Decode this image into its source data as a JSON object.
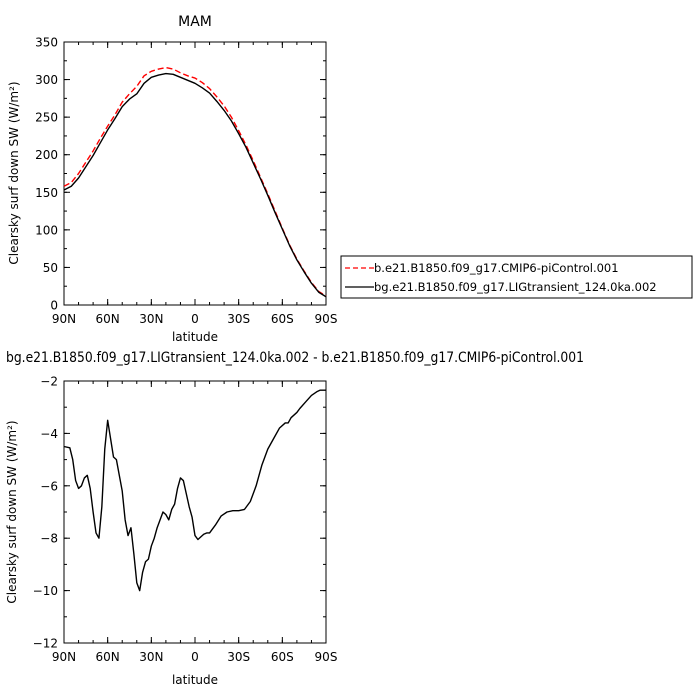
{
  "chart_data": [
    {
      "type": "line",
      "title": "MAM",
      "xlabel": "latitude",
      "ylabel": "Clearsky surf down SW (W/m²)",
      "xlim": [
        90,
        -90
      ],
      "ylim": [
        0,
        350
      ],
      "x_ticks": [
        90,
        60,
        30,
        0,
        -30,
        -60,
        -90
      ],
      "x_tick_labels": [
        "90N",
        "60N",
        "30N",
        "0",
        "30S",
        "60S",
        "90S"
      ],
      "y_ticks": [
        0,
        50,
        100,
        150,
        200,
        250,
        300,
        350
      ],
      "y_tick_labels": [
        "0",
        "50",
        "100",
        "150",
        "200",
        "250",
        "300",
        "350"
      ],
      "legend_position": "right, outside plot",
      "series": [
        {
          "name": "b.e21.B1850.f09_g17.CMIP6-piControl.001",
          "color": "#ff0000",
          "dash": "dashed",
          "x": [
            90,
            85,
            80,
            75,
            70,
            65,
            60,
            55,
            50,
            45,
            40,
            35,
            30,
            25,
            20,
            15,
            10,
            5,
            0,
            -5,
            -10,
            -15,
            -20,
            -25,
            -30,
            -35,
            -40,
            -45,
            -50,
            -55,
            -60,
            -65,
            -70,
            -75,
            -80,
            -85,
            -90
          ],
          "values": [
            158,
            163,
            175,
            190,
            205,
            222,
            238,
            253,
            270,
            281,
            291,
            305,
            311,
            314,
            316,
            314,
            309,
            305,
            302,
            296,
            288,
            277,
            265,
            250,
            232,
            213,
            192,
            170,
            148,
            125,
            102,
            80,
            61,
            45,
            30,
            18,
            12
          ]
        },
        {
          "name": "bg.e21.B1850.f09_g17.LIGtransient_124.0ka.002",
          "color": "#000000",
          "dash": "solid",
          "x": [
            90,
            85,
            80,
            75,
            70,
            65,
            60,
            55,
            50,
            45,
            40,
            35,
            30,
            25,
            20,
            15,
            10,
            5,
            0,
            -5,
            -10,
            -15,
            -20,
            -25,
            -30,
            -35,
            -40,
            -45,
            -50,
            -55,
            -60,
            -65,
            -70,
            -75,
            -80,
            -85,
            -90
          ],
          "values": [
            153,
            158,
            169,
            184,
            199,
            216,
            233,
            248,
            264,
            274,
            281,
            295,
            303,
            306,
            308,
            307,
            303,
            299,
            295,
            289,
            282,
            271,
            259,
            245,
            228,
            210,
            189,
            168,
            146,
            123,
            101,
            79,
            60,
            44,
            29,
            17,
            11
          ]
        }
      ]
    },
    {
      "type": "line",
      "title": "bg.e21.B1850.f09_g17.LIGtransient_124.0ka.002 - b.e21.B1850.f09_g17.CMIP6-piControl.001",
      "xlabel": "latitude",
      "ylabel": "Clearsky surf down SW (W/m²)",
      "xlim": [
        90,
        -90
      ],
      "ylim": [
        -12,
        -2
      ],
      "x_ticks": [
        90,
        60,
        30,
        0,
        -30,
        -60,
        -90
      ],
      "x_tick_labels": [
        "90N",
        "60N",
        "30N",
        "0",
        "30S",
        "60S",
        "90S"
      ],
      "y_ticks": [
        -12,
        -10,
        -8,
        -6,
        -4,
        -2
      ],
      "y_tick_labels": [
        "−12",
        "−10",
        "−8",
        "−6",
        "−4",
        "−2"
      ],
      "series": [
        {
          "color": "#000000",
          "dash": "solid",
          "x": [
            90,
            86,
            84,
            82,
            80,
            78,
            76,
            74,
            72,
            70,
            68,
            66,
            64,
            62,
            60,
            58,
            56,
            54,
            52,
            50,
            48,
            46,
            44,
            42,
            40,
            38,
            36,
            34,
            32,
            30,
            28,
            26,
            24,
            22,
            20,
            18,
            16,
            14,
            12,
            10,
            8,
            6,
            4,
            2,
            0,
            -2,
            -4,
            -6,
            -8,
            -10,
            -14,
            -18,
            -22,
            -26,
            -30,
            -34,
            -38,
            -42,
            -44,
            -46,
            -48,
            -50,
            -54,
            -58,
            -62,
            -64,
            -66,
            -68,
            -70,
            -72,
            -76,
            -80,
            -84,
            -86,
            -88,
            -90
          ],
          "values": [
            -4.5,
            -4.55,
            -5.0,
            -5.8,
            -6.1,
            -6.0,
            -5.7,
            -5.6,
            -6.1,
            -7.0,
            -7.8,
            -8.0,
            -6.8,
            -4.6,
            -3.5,
            -4.2,
            -4.9,
            -5.0,
            -5.6,
            -6.2,
            -7.3,
            -7.9,
            -7.6,
            -8.6,
            -9.7,
            -10.0,
            -9.3,
            -8.9,
            -8.8,
            -8.3,
            -8.0,
            -7.6,
            -7.3,
            -7.0,
            -7.1,
            -7.3,
            -6.9,
            -6.7,
            -6.1,
            -5.7,
            -5.8,
            -6.3,
            -6.8,
            -7.2,
            -7.9,
            -8.05,
            -7.95,
            -7.85,
            -7.8,
            -7.8,
            -7.5,
            -7.15,
            -7.0,
            -6.95,
            -6.95,
            -6.9,
            -6.6,
            -6.0,
            -5.6,
            -5.2,
            -4.9,
            -4.6,
            -4.2,
            -3.8,
            -3.6,
            -3.6,
            -3.4,
            -3.3,
            -3.2,
            -3.05,
            -2.8,
            -2.55,
            -2.4,
            -2.35,
            -2.35,
            -2.35
          ]
        }
      ]
    }
  ]
}
